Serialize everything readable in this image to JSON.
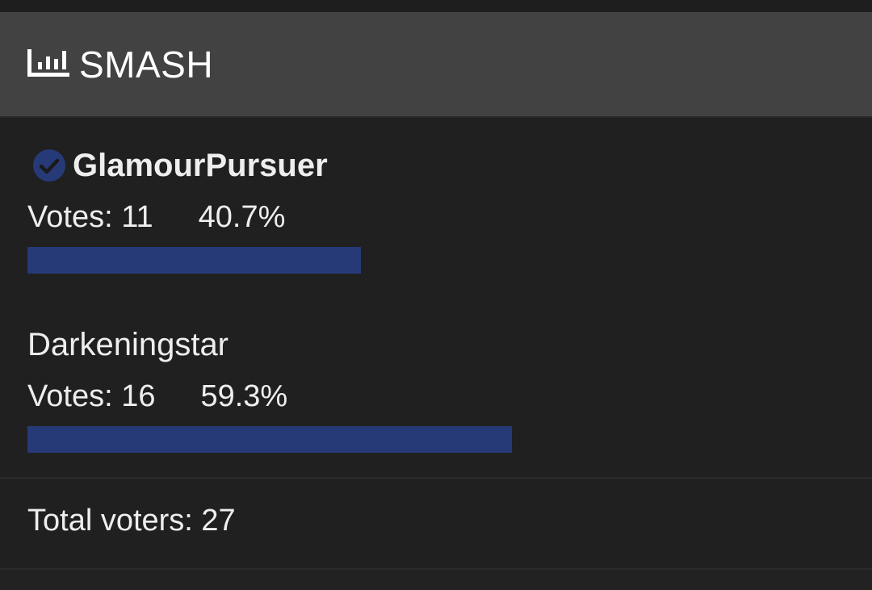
{
  "poll": {
    "title": "SMASH",
    "icon": "poll-chart-icon",
    "bar_color": "#263a78",
    "options": [
      {
        "name": "GlamourPursuer",
        "votes_label": "Votes: 11",
        "votes": 11,
        "percent": "40.7%",
        "selected": true
      },
      {
        "name": "Darkeningstar",
        "votes_label": "Votes: 16",
        "votes": 16,
        "percent": "59.3%",
        "selected": false
      }
    ],
    "total_label": "Total voters: 27"
  }
}
